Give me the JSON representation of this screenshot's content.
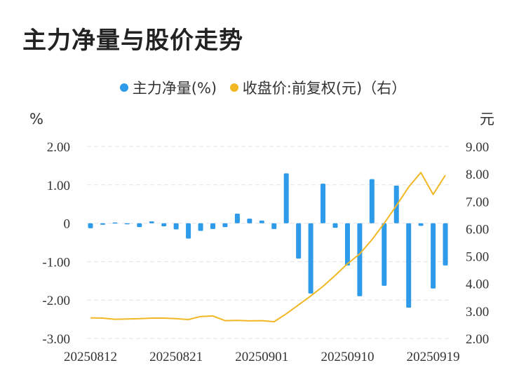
{
  "title": "主力净量与股价走势",
  "legend": [
    {
      "label": "主力净量(%)",
      "color": "#2e9bea"
    },
    {
      "label": "收盘价:前复权(元)（右）",
      "color": "#f2b824"
    }
  ],
  "chart_data": {
    "type": "bar+line",
    "left_axis": {
      "unit": "%",
      "ticks": [
        "2.00",
        "1.00",
        "0",
        "-1.00",
        "-2.00",
        "-3.00"
      ],
      "range": [
        -3,
        2
      ]
    },
    "right_axis": {
      "unit": "元",
      "ticks": [
        "9.00",
        "8.00",
        "7.00",
        "6.00",
        "5.00",
        "4.00",
        "3.00",
        "2.00"
      ],
      "range": [
        2,
        9
      ]
    },
    "x_ticks": [
      "20250812",
      "20250821",
      "20250901",
      "20250910",
      "20250919"
    ],
    "x_tick_index": [
      0,
      7,
      14,
      21,
      28
    ],
    "series": [
      {
        "name": "主力净量(%)",
        "type": "bar",
        "axis": "left",
        "color": "#2e9bea",
        "values": [
          -0.13,
          -0.04,
          0.02,
          -0.01,
          -0.1,
          0.05,
          -0.08,
          -0.16,
          -0.4,
          -0.2,
          -0.15,
          -0.1,
          0.25,
          0.12,
          0.07,
          -0.15,
          1.3,
          -0.92,
          -1.83,
          1.03,
          -0.12,
          -1.1,
          -1.9,
          1.15,
          -1.63,
          0.98,
          -2.2,
          -0.07,
          -1.7,
          -1.1
        ]
      },
      {
        "name": "收盘价:前复权(元)（右）",
        "type": "line",
        "axis": "right",
        "color": "#f2b824",
        "values": [
          2.75,
          2.74,
          2.7,
          2.71,
          2.72,
          2.74,
          2.74,
          2.72,
          2.69,
          2.8,
          2.82,
          2.65,
          2.66,
          2.64,
          2.65,
          2.61,
          2.9,
          3.22,
          3.55,
          3.9,
          4.3,
          4.72,
          5.08,
          5.6,
          6.2,
          6.85,
          7.52,
          8.05,
          7.25,
          7.95
        ]
      }
    ],
    "grid": true
  }
}
